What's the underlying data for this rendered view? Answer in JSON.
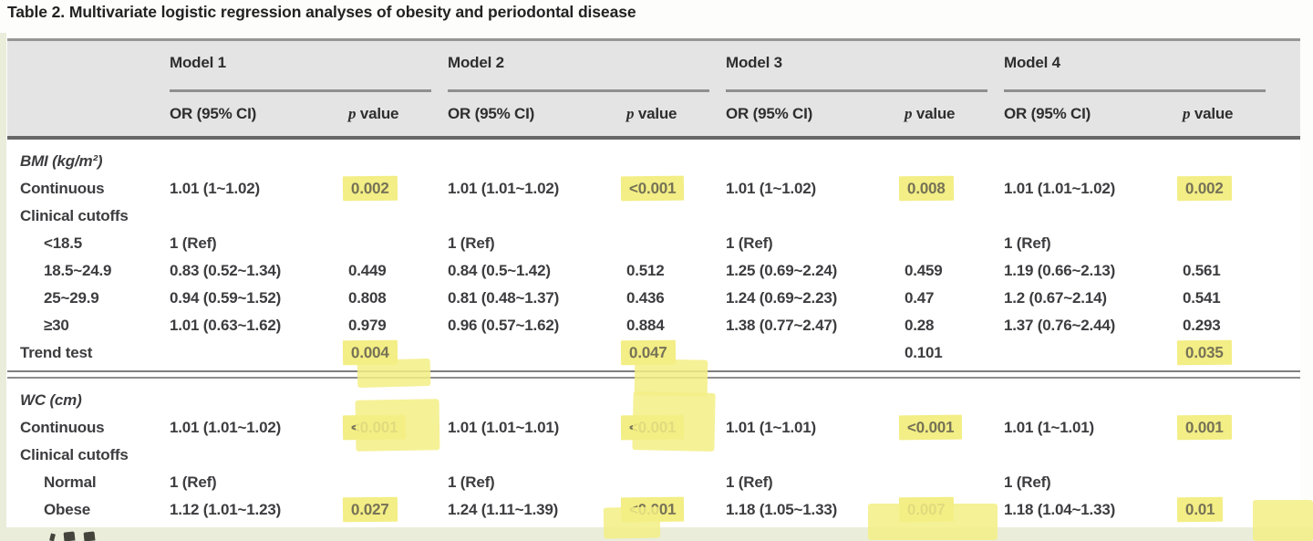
{
  "title": {
    "label": "Table 2.",
    "text": "Multivariate logistic regression analyses of obesity and periodontal disease"
  },
  "colors": {
    "highlight": "#f3ee85",
    "highlight_text": "#767257",
    "header_bg": "#e4e4e4",
    "body_text": "#3d3d40",
    "page_band": "#e9edda"
  },
  "table": {
    "models": [
      "Model 1",
      "Model 2",
      "Model 3",
      "Model 4"
    ],
    "subheader": {
      "or": "OR (95% CI)",
      "p_italic": "p",
      "p_rest": "value"
    },
    "sections": [
      {
        "rows": [
          {
            "label": "BMI (kg/m²)",
            "italic": true,
            "indent": false,
            "cells": null
          },
          {
            "label": "Continuous",
            "italic": false,
            "indent": false,
            "cells": [
              {
                "or": "1.01 (1~1.02)",
                "p": "0.002",
                "hl": true
              },
              {
                "or": "1.01 (1.01~1.02)",
                "p": "<0.001",
                "hl": true
              },
              {
                "or": "1.01 (1~1.02)",
                "p": "0.008",
                "hl": true
              },
              {
                "or": "1.01 (1.01~1.02)",
                "p": "0.002",
                "hl": true
              }
            ]
          },
          {
            "label": "Clinical cutoffs",
            "italic": false,
            "indent": false,
            "cells": null
          },
          {
            "label": "<18.5",
            "italic": false,
            "indent": true,
            "cells": [
              {
                "or": "1 (Ref)",
                "p": "",
                "hl": false
              },
              {
                "or": "1 (Ref)",
                "p": "",
                "hl": false
              },
              {
                "or": "1 (Ref)",
                "p": "",
                "hl": false
              },
              {
                "or": "1 (Ref)",
                "p": "",
                "hl": false
              }
            ]
          },
          {
            "label": "18.5~24.9",
            "italic": false,
            "indent": true,
            "cells": [
              {
                "or": "0.83 (0.52~1.34)",
                "p": "0.449",
                "hl": false
              },
              {
                "or": "0.84 (0.5~1.42)",
                "p": "0.512",
                "hl": false
              },
              {
                "or": "1.25 (0.69~2.24)",
                "p": "0.459",
                "hl": false
              },
              {
                "or": "1.19 (0.66~2.13)",
                "p": "0.561",
                "hl": false
              }
            ]
          },
          {
            "label": "25~29.9",
            "italic": false,
            "indent": true,
            "cells": [
              {
                "or": "0.94 (0.59~1.52)",
                "p": "0.808",
                "hl": false
              },
              {
                "or": "0.81 (0.48~1.37)",
                "p": "0.436",
                "hl": false
              },
              {
                "or": "1.24 (0.69~2.23)",
                "p": "0.47",
                "hl": false
              },
              {
                "or": "1.2 (0.67~2.14)",
                "p": "0.541",
                "hl": false
              }
            ]
          },
          {
            "label": "≥30",
            "italic": false,
            "indent": true,
            "cells": [
              {
                "or": "1.01 (0.63~1.62)",
                "p": "0.979",
                "hl": false
              },
              {
                "or": "0.96 (0.57~1.62)",
                "p": "0.884",
                "hl": false
              },
              {
                "or": "1.38 (0.77~2.47)",
                "p": "0.28",
                "hl": false
              },
              {
                "or": "1.37 (0.76~2.44)",
                "p": "0.293",
                "hl": false
              }
            ]
          },
          {
            "label": "Trend test",
            "italic": false,
            "indent": false,
            "cells": [
              {
                "or": "",
                "p": "0.004",
                "hl": true
              },
              {
                "or": "",
                "p": "0.047",
                "hl": true
              },
              {
                "or": "",
                "p": "0.101",
                "hl": false
              },
              {
                "or": "",
                "p": "0.035",
                "hl": true
              }
            ]
          }
        ]
      },
      {
        "rows": [
          {
            "label": "WC (cm)",
            "italic": true,
            "indent": false,
            "cells": null
          },
          {
            "label": "Continuous",
            "italic": false,
            "indent": false,
            "cells": [
              {
                "or": "1.01 (1.01~1.02)",
                "p": "<0.001",
                "hl": true
              },
              {
                "or": "1.01 (1.01~1.01)",
                "p": "<0.001",
                "hl": true
              },
              {
                "or": "1.01 (1~1.01)",
                "p": "<0.001",
                "hl": true
              },
              {
                "or": "1.01 (1~1.01)",
                "p": "0.001",
                "hl": true
              }
            ]
          },
          {
            "label": "Clinical cutoffs",
            "italic": false,
            "indent": false,
            "cells": null
          },
          {
            "label": "Normal",
            "italic": false,
            "indent": true,
            "cells": [
              {
                "or": "1 (Ref)",
                "p": "",
                "hl": false
              },
              {
                "or": "1 (Ref)",
                "p": "",
                "hl": false
              },
              {
                "or": "1 (Ref)",
                "p": "",
                "hl": false
              },
              {
                "or": "1 (Ref)",
                "p": "",
                "hl": false
              }
            ]
          },
          {
            "label": "Obese",
            "italic": false,
            "indent": true,
            "cells": [
              {
                "or": "1.12 (1.01~1.23)",
                "p": "0.027",
                "hl": true
              },
              {
                "or": "1.24 (1.11~1.39)",
                "p": "<0.001",
                "hl": true
              },
              {
                "or": "1.18 (1.05~1.33)",
                "p": "0.007",
                "hl": true
              },
              {
                "or": "1.18 (1.04~1.33)",
                "p": "0.01",
                "hl": true
              }
            ]
          }
        ]
      }
    ]
  }
}
